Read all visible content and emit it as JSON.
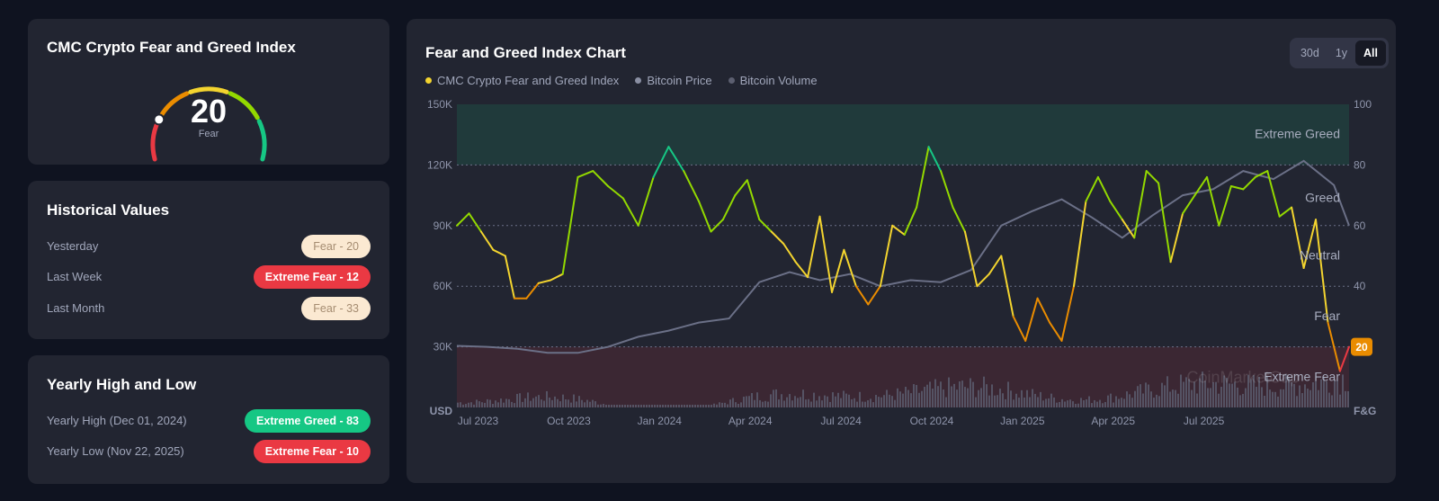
{
  "gauge": {
    "title": "CMC Crypto Fear and Greed Index",
    "value": "20",
    "label": "Fear",
    "value_number": 20
  },
  "historical": {
    "title": "Historical Values",
    "rows": [
      {
        "label": "Yesterday",
        "badge": "Fear - 20"
      },
      {
        "label": "Last Week",
        "badge": "Extreme Fear - 12"
      },
      {
        "label": "Last Month",
        "badge": "Fear - 33"
      }
    ]
  },
  "yearly": {
    "title": "Yearly High and Low",
    "high_label": "Yearly High",
    "high_date": "(Dec 01, 2024)",
    "high_badge": "Extreme Greed - 83",
    "low_label": "Yearly Low",
    "low_date": "(Nov 22, 2025)",
    "low_badge": "Extreme Fear - 10"
  },
  "chart_card": {
    "title": "Fear and Greed Index Chart",
    "ranges": [
      "30d",
      "1y",
      "All"
    ],
    "active_range": "All",
    "current_badge": "20",
    "watermark": "CoinMarketCap"
  },
  "colors": {
    "extreme_fear": "#ea3943",
    "fear": "#ea8c00",
    "neutral": "#f3d42f",
    "greed": "#93d900",
    "extreme_greed": "#16c784",
    "price_line": "#6b7087",
    "volume": "#5c5f70"
  },
  "chart_data": {
    "type": "line",
    "title": "Fear and Greed Index Chart",
    "legend": [
      "CMC Crypto Fear and Greed Index",
      "Bitcoin Price",
      "Bitcoin Volume"
    ],
    "left_axis": {
      "unit": "USD",
      "ticks": [
        "30K",
        "60K",
        "90K",
        "120K",
        "150K"
      ],
      "range": [
        0,
        150000
      ]
    },
    "right_axis": {
      "unit": "F&G",
      "ticks": [
        "20",
        "40",
        "60",
        "80",
        "100"
      ],
      "range": [
        0,
        100
      ]
    },
    "x_ticks": [
      "Jul 2023",
      "Oct 2023",
      "Jan 2024",
      "Apr 2024",
      "Jul 2024",
      "Oct 2024",
      "Jan 2025",
      "Apr 2025",
      "Jul 2025"
    ],
    "zones": [
      "Extreme Greed",
      "Greed",
      "Neutral",
      "Fear",
      "Extreme Fear"
    ],
    "fear_greed_series": {
      "name": "CMC Crypto Fear and Greed Index",
      "x": [
        0,
        0.4,
        0.8,
        1.2,
        1.6,
        1.9,
        2.3,
        2.7,
        3.1,
        3.5,
        4.0,
        4.5,
        5.0,
        5.5,
        6.0,
        6.5,
        7.0,
        7.5,
        8.0,
        8.4,
        8.8,
        9.2,
        9.6,
        10.0,
        10.4,
        10.8,
        11.2,
        11.6,
        12.0,
        12.4,
        12.8,
        13.2,
        13.6,
        14.0,
        14.4,
        14.8,
        15.2,
        15.6,
        16.0,
        16.4,
        16.8,
        17.2,
        17.6,
        18.0,
        18.4,
        18.8,
        19.2,
        19.6,
        20.0,
        20.4,
        20.8,
        21.2,
        21.6,
        22.0,
        22.4,
        22.8,
        23.2,
        23.6,
        24.0,
        24.4,
        24.8,
        25.2,
        25.6,
        26.0,
        26.4,
        26.8,
        27.2,
        27.6,
        28.0,
        28.4,
        28.8,
        29.2,
        29.5
      ],
      "values": [
        60,
        64,
        58,
        52,
        50,
        36,
        36,
        41,
        42,
        44,
        76,
        78,
        73,
        69,
        60,
        76,
        86,
        78,
        68,
        58,
        62,
        70,
        75,
        62,
        58,
        54,
        48,
        43,
        63,
        38,
        52,
        40,
        34,
        40,
        60,
        57,
        66,
        86,
        78,
        66,
        58,
        40,
        44,
        50,
        30,
        22,
        36,
        28,
        22,
        40,
        68,
        76,
        68,
        62,
        56,
        78,
        74,
        48,
        64,
        70,
        76,
        60,
        73,
        72,
        76,
        78,
        63,
        66,
        46,
        62,
        28,
        12,
        20
      ],
      "range": [
        0,
        100
      ]
    },
    "bitcoin_price_series": {
      "name": "Bitcoin Price",
      "x": [
        0,
        1,
        2,
        3,
        4,
        5,
        6,
        7,
        8,
        9,
        10,
        11,
        12,
        13,
        14,
        15,
        16,
        17,
        18,
        19,
        20,
        21,
        22,
        23,
        24,
        25,
        26,
        27,
        28,
        29,
        29.5
      ],
      "values": [
        30500,
        30000,
        29000,
        27000,
        27000,
        30000,
        35000,
        38000,
        42000,
        44000,
        62000,
        67000,
        63000,
        66000,
        60000,
        63000,
        62000,
        68000,
        90000,
        97000,
        103000,
        94000,
        84000,
        95000,
        105000,
        108000,
        117000,
        113000,
        122000,
        110000,
        90000
      ],
      "range": [
        0,
        150000
      ]
    },
    "x_domain": [
      0,
      29.5
    ]
  }
}
